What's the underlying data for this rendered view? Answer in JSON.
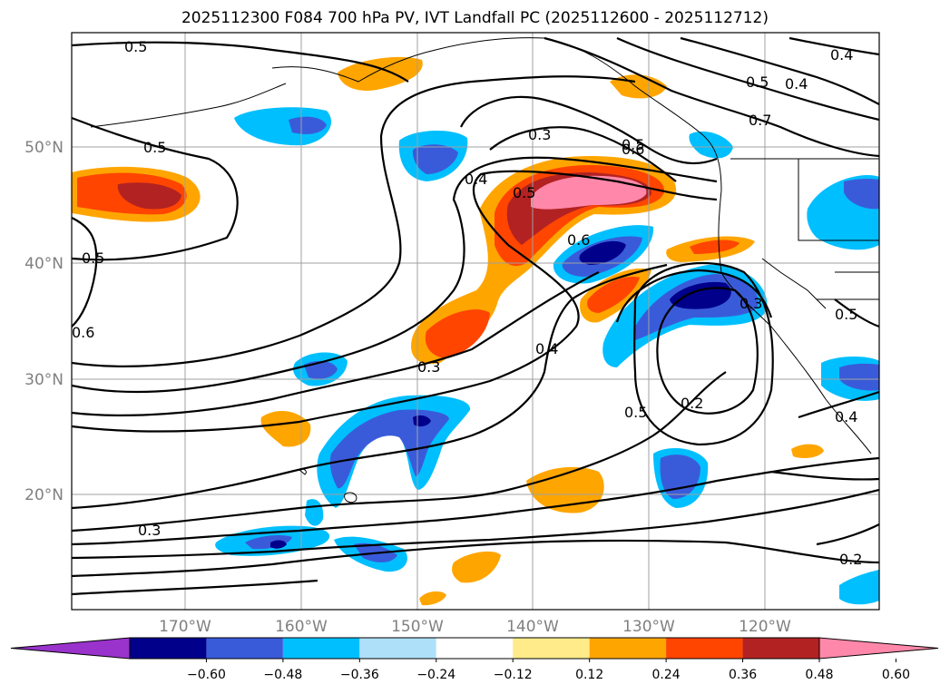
{
  "title": "2025112300 F084 700 hPa PV, IVT Landfall PC (2025112600 - 2025112712)",
  "lat_labels": [
    "50°N",
    "40°N",
    "30°N",
    "20°N"
  ],
  "lon_labels": [
    "170°W",
    "160°W",
    "150°W",
    "140°W",
    "130°W",
    "120°W"
  ],
  "contour_labels": [
    "0.5",
    "0.5",
    "0.5",
    "0.6",
    "0.4",
    "0.3",
    "0.5",
    "0.6",
    "0.3",
    "0.5",
    "0.4",
    "0.5",
    "0.7",
    "0.4",
    "0.6",
    "0.3",
    "0.4",
    "0.5",
    "0.2",
    "0.5",
    "0.4",
    "0.3",
    "0.2"
  ],
  "colorbar": {
    "ticks": [
      "−0.60",
      "−0.48",
      "−0.36",
      "−0.24",
      "−0.12",
      "0.12",
      "0.24",
      "0.36",
      "0.48",
      "0.60"
    ],
    "colors": [
      "#9933cc",
      "#00008b",
      "#3a5bd9",
      "#00bfff",
      "#aee1f9",
      "#ffffff",
      "#ffeb8a",
      "#ffa500",
      "#ff4500",
      "#b22222",
      "#ff88aa"
    ]
  }
}
